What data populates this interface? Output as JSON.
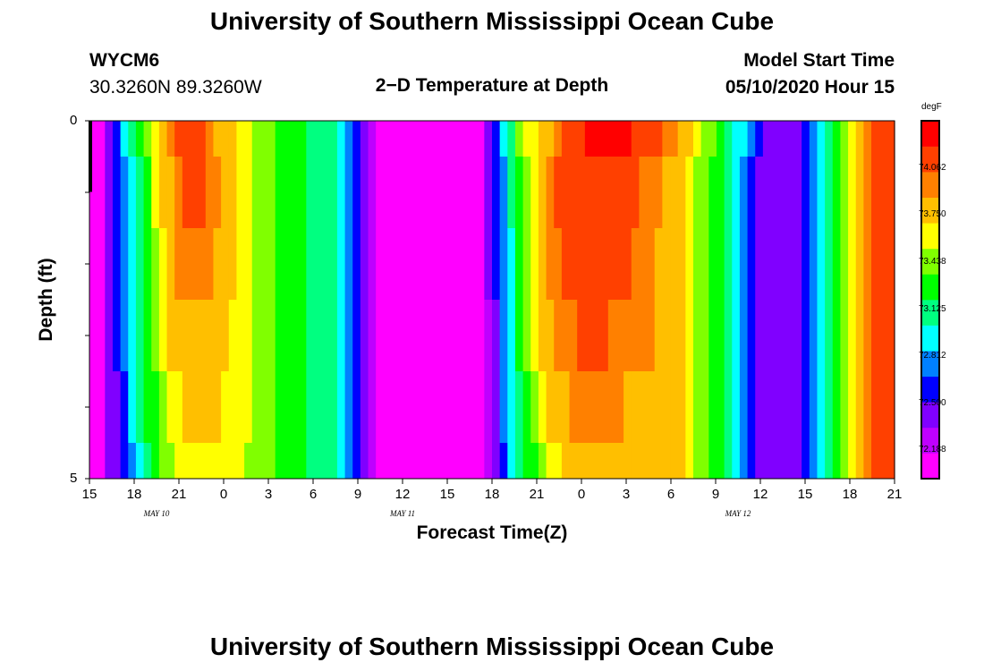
{
  "title": "University of Southern Mississippi Ocean Cube",
  "footer_title": "University of Southern Mississippi Ocean Cube",
  "station_id": "WYCM6",
  "coordinates": "30.3260N 89.3260W",
  "plot_title": "2−D Temperature at Depth",
  "model_start_label": "Model Start Time",
  "model_start_value": "05/10/2020 Hour 15",
  "chart_data": {
    "type": "heatmap",
    "title": "2-D Temperature at Depth",
    "xlabel": "Forecast Time(Z)",
    "ylabel": "Depth (ft)",
    "x_hours_range": [
      0,
      54
    ],
    "ylim": [
      0,
      5
    ],
    "y_tick_labels": [
      "0",
      "5"
    ],
    "x_tick_labels": [
      "15",
      "18",
      "21",
      "0",
      "3",
      "6",
      "9",
      "12",
      "15",
      "18",
      "21",
      "0",
      "3",
      "6",
      "9",
      "12",
      "15",
      "18",
      "21"
    ],
    "date_labels": [
      {
        "text": "MAY 10",
        "hour": 4.5
      },
      {
        "text": "MAY 11",
        "hour": 21
      },
      {
        "text": "MAY 12",
        "hour": 43.5
      }
    ],
    "units": "degF",
    "colorbar_ticks": [
      "74.062",
      "73.750",
      "73.438",
      "73.125",
      "72.812",
      "72.500",
      "72.188"
    ],
    "colorbar_range": [
      72.0,
      74.375
    ],
    "colors": [
      "#ff00ff",
      "#bf00ff",
      "#8000ff",
      "#0000ff",
      "#0080ff",
      "#00ffff",
      "#00ff80",
      "#00ff00",
      "#80ff00",
      "#ffff00",
      "#ffbf00",
      "#ff8000",
      "#ff4000",
      "#ff0000"
    ],
    "depth_layers": [
      "0-0.5",
      "0.5-1.5",
      "1.5-2.5",
      "2.5-3.5",
      "3.5-4.5",
      "4.5-5"
    ],
    "temperature_by_layer": [
      [
        72.0,
        72.15,
        72.35,
        72.55,
        72.85,
        73.05,
        73.25,
        73.45,
        73.6,
        73.75,
        73.95,
        74.1,
        74.12,
        74.12,
        74.1,
        74.0,
        73.85,
        73.75,
        73.7,
        73.6,
        73.55,
        73.5,
        73.45,
        73.4,
        73.35,
        73.3,
        73.25,
        73.2,
        73.15,
        73.1,
        73.05,
        73.1,
        72.9,
        72.7,
        72.55,
        72.4,
        72.3,
        72.15,
        72.05,
        72.0,
        72.0,
        72.0,
        72.0,
        72.0,
        72.0,
        72.0,
        72.0,
        72.0,
        72.0,
        72.05,
        72.15,
        72.35,
        72.6,
        72.9,
        73.15,
        73.4,
        73.55,
        73.65,
        73.75,
        73.85,
        73.95,
        74.05,
        74.15,
        74.2,
        74.25,
        74.28,
        74.3,
        74.3,
        74.28,
        74.25,
        74.2,
        74.15,
        74.1,
        74.05,
        74.0,
        73.9,
        73.8,
        73.7,
        73.6,
        73.5,
        73.4,
        73.3,
        73.15,
        73.0,
        72.85,
        72.7,
        72.6,
        72.5,
        72.45,
        72.4,
        72.4,
        72.45,
        72.55,
        72.7,
        72.9,
        73.1,
        73.3,
        73.5,
        73.65,
        73.8,
        73.95,
        74.05,
        74.1,
        74.12
      ],
      [
        72.0,
        72.15,
        72.35,
        72.55,
        72.75,
        72.95,
        73.15,
        73.35,
        73.55,
        73.7,
        73.85,
        74.0,
        74.05,
        74.05,
        74.05,
        74.0,
        73.9,
        73.78,
        73.7,
        73.6,
        73.55,
        73.5,
        73.45,
        73.4,
        73.35,
        73.3,
        73.25,
        73.2,
        73.15,
        73.1,
        73.05,
        73.1,
        72.9,
        72.7,
        72.55,
        72.4,
        72.3,
        72.15,
        72.05,
        72.0,
        72.0,
        72.0,
        72.0,
        72.0,
        72.0,
        72.0,
        72.0,
        72.0,
        72.0,
        72.05,
        72.15,
        72.35,
        72.55,
        72.8,
        73.05,
        73.3,
        73.5,
        73.65,
        73.8,
        73.95,
        74.05,
        74.15,
        74.2,
        74.2,
        74.2,
        74.2,
        74.2,
        74.18,
        74.15,
        74.1,
        74.05,
        74.0,
        73.95,
        73.9,
        73.85,
        73.8,
        73.7,
        73.6,
        73.5,
        73.4,
        73.3,
        73.2,
        73.05,
        72.9,
        72.75,
        72.6,
        72.5,
        72.45,
        72.4,
        72.4,
        72.4,
        72.45,
        72.55,
        72.7,
        72.9,
        73.1,
        73.3,
        73.5,
        73.65,
        73.8,
        73.95,
        74.05,
        74.1,
        74.12
      ],
      [
        72.0,
        72.15,
        72.35,
        72.55,
        72.75,
        72.95,
        73.1,
        73.3,
        73.5,
        73.65,
        73.8,
        73.92,
        73.95,
        73.95,
        73.95,
        73.9,
        73.82,
        73.75,
        73.7,
        73.6,
        73.55,
        73.5,
        73.45,
        73.4,
        73.35,
        73.3,
        73.25,
        73.2,
        73.15,
        73.1,
        73.05,
        73.1,
        72.9,
        72.7,
        72.55,
        72.4,
        72.3,
        72.15,
        72.05,
        72.0,
        72.0,
        72.0,
        72.0,
        72.0,
        72.0,
        72.0,
        72.0,
        72.0,
        72.0,
        72.05,
        72.15,
        72.35,
        72.55,
        72.8,
        73.0,
        73.25,
        73.45,
        73.6,
        73.75,
        73.9,
        74.0,
        74.08,
        74.12,
        74.15,
        74.15,
        74.15,
        74.15,
        74.12,
        74.1,
        74.05,
        74.0,
        73.95,
        73.9,
        73.85,
        73.8,
        73.75,
        73.7,
        73.6,
        73.5,
        73.4,
        73.3,
        73.2,
        73.05,
        72.9,
        72.75,
        72.6,
        72.5,
        72.45,
        72.4,
        72.4,
        72.4,
        72.45,
        72.55,
        72.7,
        72.9,
        73.1,
        73.3,
        73.5,
        73.65,
        73.8,
        73.95,
        74.05,
        74.1,
        74.12
      ],
      [
        72.0,
        72.15,
        72.35,
        72.55,
        72.7,
        72.9,
        73.1,
        73.25,
        73.45,
        73.6,
        73.7,
        73.8,
        73.85,
        73.85,
        73.85,
        73.82,
        73.78,
        73.72,
        73.68,
        73.6,
        73.55,
        73.5,
        73.45,
        73.4,
        73.35,
        73.3,
        73.25,
        73.2,
        73.15,
        73.1,
        73.05,
        73.1,
        72.9,
        72.7,
        72.55,
        72.4,
        72.3,
        72.15,
        72.05,
        72.0,
        72.0,
        72.0,
        72.0,
        72.0,
        72.0,
        72.0,
        72.0,
        72.0,
        72.0,
        72.05,
        72.15,
        72.3,
        72.5,
        72.75,
        72.95,
        73.2,
        73.4,
        73.55,
        73.7,
        73.85,
        73.95,
        74.0,
        74.02,
        74.05,
        74.05,
        74.05,
        74.05,
        74.02,
        74.0,
        73.98,
        73.95,
        73.92,
        73.88,
        73.85,
        73.8,
        73.75,
        73.7,
        73.6,
        73.5,
        73.4,
        73.3,
        73.2,
        73.05,
        72.9,
        72.75,
        72.6,
        72.5,
        72.45,
        72.4,
        72.4,
        72.4,
        72.45,
        72.55,
        72.7,
        72.9,
        73.1,
        73.3,
        73.5,
        73.65,
        73.8,
        73.95,
        74.05,
        74.1,
        74.12
      ],
      [
        72.0,
        72.15,
        72.35,
        72.5,
        72.65,
        72.85,
        73.05,
        73.2,
        73.35,
        73.5,
        73.6,
        73.68,
        73.72,
        73.75,
        73.75,
        73.72,
        73.7,
        73.68,
        73.65,
        73.6,
        73.55,
        73.5,
        73.45,
        73.4,
        73.35,
        73.3,
        73.25,
        73.2,
        73.15,
        73.1,
        73.05,
        73.1,
        72.9,
        72.7,
        72.55,
        72.4,
        72.3,
        72.15,
        72.05,
        72.0,
        72.0,
        72.0,
        72.0,
        72.0,
        72.0,
        72.0,
        72.0,
        72.0,
        72.0,
        72.05,
        72.15,
        72.3,
        72.5,
        72.7,
        72.9,
        73.1,
        73.3,
        73.45,
        73.6,
        73.72,
        73.8,
        73.85,
        73.88,
        73.9,
        73.9,
        73.9,
        73.9,
        73.88,
        73.87,
        73.85,
        73.85,
        73.85,
        73.82,
        73.8,
        73.78,
        73.75,
        73.7,
        73.6,
        73.5,
        73.4,
        73.3,
        73.2,
        73.05,
        72.9,
        72.75,
        72.6,
        72.5,
        72.45,
        72.4,
        72.4,
        72.4,
        72.45,
        72.55,
        72.7,
        72.9,
        73.1,
        73.3,
        73.5,
        73.65,
        73.8,
        73.95,
        74.05,
        74.1,
        74.12
      ],
      [
        72.0,
        72.15,
        72.35,
        72.45,
        72.6,
        72.8,
        72.95,
        73.1,
        73.25,
        73.4,
        73.5,
        73.58,
        73.62,
        73.65,
        73.65,
        73.65,
        73.62,
        73.6,
        73.58,
        73.55,
        73.5,
        73.48,
        73.45,
        73.4,
        73.35,
        73.3,
        73.25,
        73.2,
        73.15,
        73.1,
        73.05,
        73.1,
        72.9,
        72.7,
        72.55,
        72.4,
        72.3,
        72.15,
        72.05,
        72.0,
        72.0,
        72.0,
        72.0,
        72.0,
        72.0,
        72.0,
        72.0,
        72.0,
        72.0,
        72.05,
        72.15,
        72.25,
        72.45,
        72.65,
        72.85,
        73.05,
        73.2,
        73.35,
        73.5,
        73.6,
        73.68,
        73.72,
        73.75,
        73.78,
        73.78,
        73.78,
        73.78,
        73.78,
        73.78,
        73.8,
        73.8,
        73.82,
        73.82,
        73.82,
        73.8,
        73.78,
        73.72,
        73.62,
        73.5,
        73.4,
        73.3,
        73.2,
        73.05,
        72.9,
        72.75,
        72.6,
        72.5,
        72.45,
        72.4,
        72.4,
        72.4,
        72.45,
        72.55,
        72.7,
        72.9,
        73.1,
        73.3,
        73.5,
        73.65,
        73.8,
        73.95,
        74.05,
        74.1,
        74.12
      ]
    ]
  }
}
